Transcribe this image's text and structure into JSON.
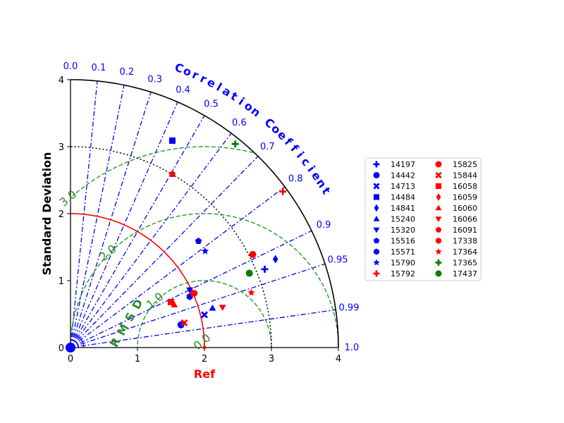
{
  "chart_data": {
    "type": "taylor",
    "ylabel": "Standard Deviation",
    "xlabel": "Ref",
    "corr_axis_label": "Correlation Coefficient",
    "rms_axis_label": "RMSD",
    "std_range": [
      0,
      4
    ],
    "std_ticks": [
      "0",
      "1",
      "2",
      "3",
      "4"
    ],
    "reference_std": 2.0,
    "observed_std_contour": 3.0,
    "correlation_ticks": [
      "0.0",
      "0.1",
      "0.2",
      "0.3",
      "0.4",
      "0.5",
      "0.6",
      "0.7",
      "0.8",
      "0.9",
      "0.95",
      "0.99",
      "1.0"
    ],
    "rms_contours": [
      {
        "value": 1.0,
        "label": "1.0"
      },
      {
        "value": 2.0,
        "label": "2.0"
      },
      {
        "value": 3.0,
        "label": "3.0"
      }
    ],
    "rms_zero_label": "0.0",
    "legend_position": "right",
    "series": [
      {
        "name": "14197",
        "x": 2.9,
        "y": 1.17,
        "marker": "plus",
        "color": "#0000ff"
      },
      {
        "name": "14442",
        "x": 1.65,
        "y": 0.34,
        "marker": "circle",
        "color": "#0000ff"
      },
      {
        "name": "14713",
        "x": 2.0,
        "y": 0.49,
        "marker": "x",
        "color": "#0000ff"
      },
      {
        "name": "14484",
        "x": 1.52,
        "y": 3.09,
        "marker": "square",
        "color": "#0000ff"
      },
      {
        "name": "14841",
        "x": 3.06,
        "y": 1.32,
        "marker": "diamond",
        "color": "#0000ff"
      },
      {
        "name": "15240",
        "x": 2.12,
        "y": 0.59,
        "marker": "triangle-up",
        "color": "#0000ff"
      },
      {
        "name": "15320",
        "x": 1.78,
        "y": 0.86,
        "marker": "triangle-down",
        "color": "#0000ff"
      },
      {
        "name": "15516",
        "x": 1.91,
        "y": 1.59,
        "marker": "pentagon",
        "color": "#0000ff"
      },
      {
        "name": "15571",
        "x": 1.78,
        "y": 0.76,
        "marker": "hexagon",
        "color": "#0000ff"
      },
      {
        "name": "15790",
        "x": 2.01,
        "y": 1.44,
        "marker": "star",
        "color": "#0000ff"
      },
      {
        "name": "15792",
        "x": 3.17,
        "y": 2.33,
        "marker": "plus",
        "color": "#ff0000"
      },
      {
        "name": "15825",
        "x": 2.72,
        "y": 1.39,
        "marker": "circle",
        "color": "#ff0000"
      },
      {
        "name": "15844",
        "x": 1.7,
        "y": 0.37,
        "marker": "x",
        "color": "#ff0000"
      },
      {
        "name": "16058",
        "x": 1.5,
        "y": 0.68,
        "marker": "square",
        "color": "#ff0000"
      },
      {
        "name": "16059",
        "x": 1.82,
        "y": 0.81,
        "marker": "diamond",
        "color": "#ff0000"
      },
      {
        "name": "16060",
        "x": 1.55,
        "y": 0.64,
        "marker": "triangle-up",
        "color": "#ff0000"
      },
      {
        "name": "16066",
        "x": 2.27,
        "y": 0.6,
        "marker": "triangle-down",
        "color": "#ff0000"
      },
      {
        "name": "16091",
        "x": 1.52,
        "y": 2.59,
        "marker": "pentagon",
        "color": "#ff0000"
      },
      {
        "name": "17338",
        "x": 1.85,
        "y": 0.81,
        "marker": "hexagon",
        "color": "#ff0000"
      },
      {
        "name": "17364",
        "x": 2.7,
        "y": 0.82,
        "marker": "star",
        "color": "#ff0000"
      },
      {
        "name": "17365",
        "x": 2.46,
        "y": 3.04,
        "marker": "plus",
        "color": "#008000"
      },
      {
        "name": "17437",
        "x": 2.67,
        "y": 1.11,
        "marker": "circle",
        "color": "#008000"
      }
    ]
  },
  "colors": {
    "axis": "#000000",
    "correlation": "#0000ff",
    "rms": "#2e8b2e",
    "reference": "#ff0000",
    "observed": "#000000",
    "xlabel": "#ff0000"
  }
}
